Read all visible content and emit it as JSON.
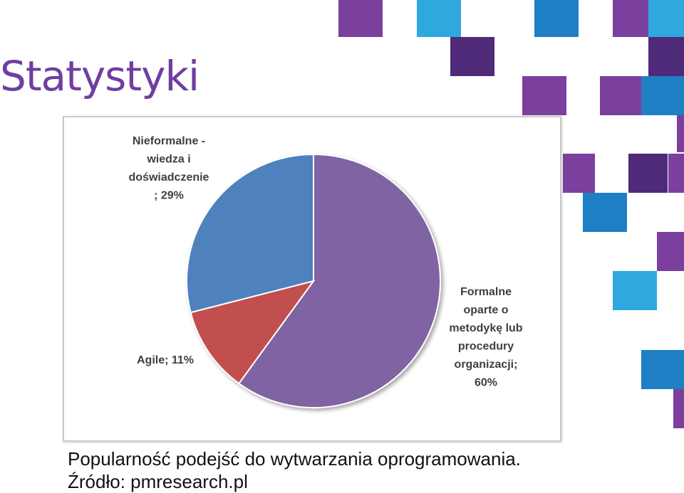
{
  "slide": {
    "title": "Statystyki",
    "caption_line1": "Popularność podejść do wytwarzania oprogramowania.",
    "caption_line2": "Źródło: pmresearch.pl"
  },
  "colors": {
    "title": "#6f3ea0",
    "deco_purple": "#7b3f9e",
    "deco_dark_purple": "#4e2a78",
    "deco_blue": "#1f7fc4",
    "deco_light_blue": "#2ea8df"
  },
  "chart_data": {
    "type": "pie",
    "title": "",
    "slices": [
      {
        "label_lines": [
          "Formalne",
          "oparte o",
          "metodykę lub",
          "procedury",
          "organizacji;",
          "60%"
        ],
        "value": 60,
        "color": "#8064a2"
      },
      {
        "label_lines": [
          "Agile; 11%"
        ],
        "value": 11,
        "color": "#c0504d"
      },
      {
        "label_lines": [
          "Nieformalne -",
          "wiedza i",
          "doświadczenie",
          "; 29%"
        ],
        "value": 29,
        "color": "#4f81bd"
      }
    ],
    "start_angle_deg": 0,
    "direction": "clockwise",
    "legend": "none"
  }
}
